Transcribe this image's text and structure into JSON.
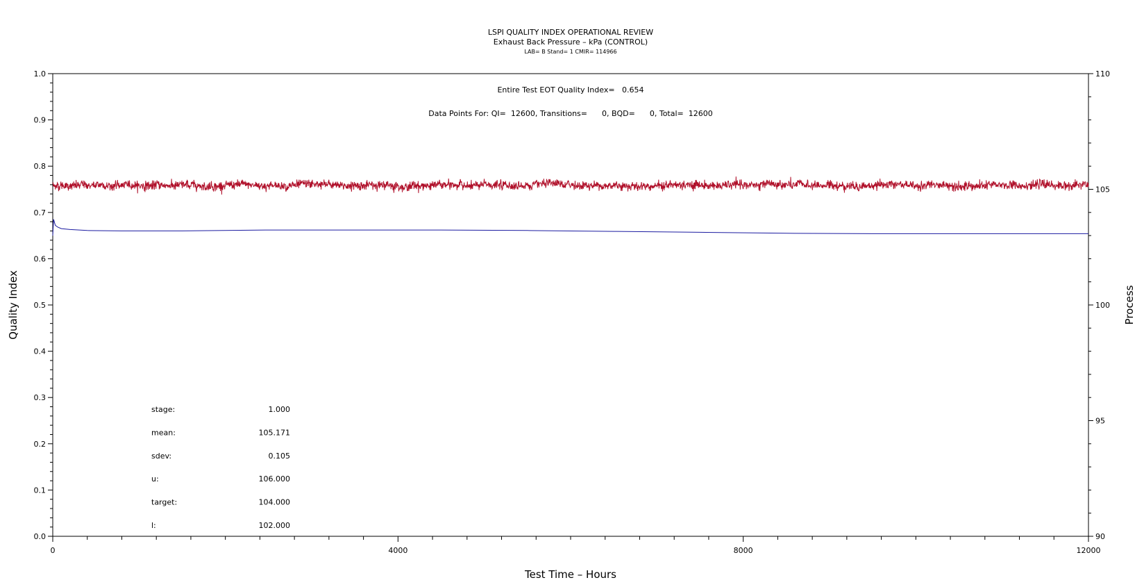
{
  "chart_data": {
    "type": "line",
    "title": "LSPI QUALITY INDEX OPERATIONAL REVIEW",
    "subtitle": "Exhaust Back Pressure – kPa (CONTROL)",
    "subtitle2": "LAB= B Stand= 1 CMIR= 114966",
    "xlabel": "Test Time – Hours",
    "ylabel_left": "Quality Index",
    "ylabel_right": "Process",
    "xlim": [
      0,
      12000
    ],
    "ylim_left": [
      0.0,
      1.0
    ],
    "ylim_right": [
      90,
      110
    ],
    "x_ticks": [
      "0",
      "4000",
      "8000",
      "12000"
    ],
    "y_left_ticks": [
      "0.0",
      "0.1",
      "0.2",
      "0.3",
      "0.4",
      "0.5",
      "0.6",
      "0.7",
      "0.8",
      "0.9",
      "1.0"
    ],
    "y_right_ticks": [
      "90",
      "95",
      "100",
      "105",
      "110"
    ],
    "annotations": {
      "eot": "Entire Test EOT Quality Index=   0.654",
      "points": "Data Points For: QI=  12600, Transitions=      0, BQD=      0, Total=  12600"
    },
    "stats": [
      {
        "label": "stage:",
        "value": "1.000"
      },
      {
        "label": "mean:",
        "value": "105.171"
      },
      {
        "label": "sdev:",
        "value": "0.105"
      },
      {
        "label": "u:",
        "value": "106.000"
      },
      {
        "label": "target:",
        "value": "104.000"
      },
      {
        "label": "l:",
        "value": "102.000"
      }
    ],
    "series": [
      {
        "axis": "right",
        "color": "#b0102a",
        "mean": 105.171,
        "sdev": 0.105,
        "x": [
          0,
          12000
        ]
      },
      {
        "axis": "left",
        "color": "#1a1aa0",
        "x": [
          0,
          10,
          30,
          60,
          100,
          200,
          400,
          800,
          1500,
          2500,
          3500,
          4500,
          5500,
          6500,
          7500,
          8500,
          9500,
          10500,
          11500,
          12000
        ],
        "values": [
          0.65,
          0.685,
          0.672,
          0.668,
          0.665,
          0.663,
          0.661,
          0.66,
          0.66,
          0.662,
          0.662,
          0.662,
          0.661,
          0.659,
          0.657,
          0.655,
          0.654,
          0.654,
          0.654,
          0.654
        ]
      }
    ]
  }
}
